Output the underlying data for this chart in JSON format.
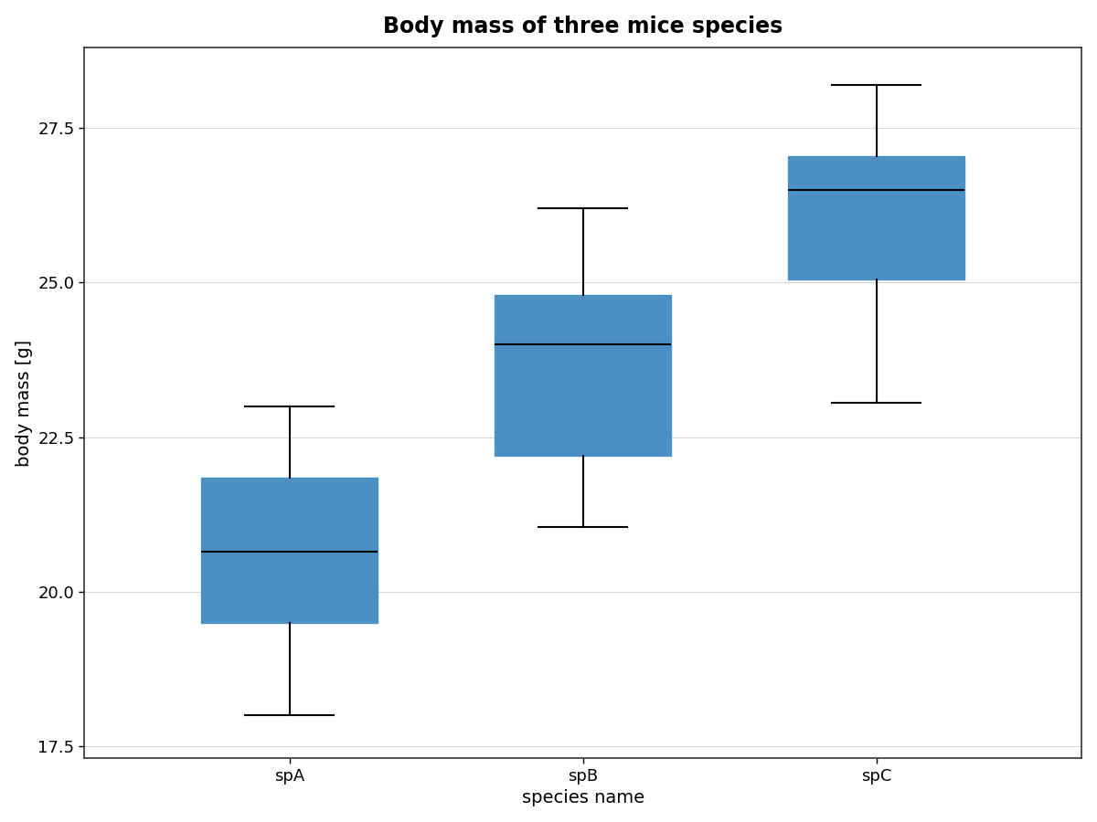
{
  "title": "Body mass of three mice species",
  "xlabel": "species name",
  "ylabel": "body mass [g]",
  "categories": [
    "spA",
    "spB",
    "spC"
  ],
  "box_stats": [
    {
      "label": "spA",
      "whislo": 18.0,
      "q1": 19.5,
      "med": 20.65,
      "q3": 21.85,
      "whishi": 23.0
    },
    {
      "label": "spB",
      "whislo": 21.05,
      "q1": 22.2,
      "med": 24.0,
      "q3": 24.8,
      "whishi": 26.2
    },
    {
      "label": "spC",
      "whislo": 23.05,
      "q1": 25.05,
      "med": 26.5,
      "q3": 27.05,
      "whishi": 28.2
    }
  ],
  "ylim": [
    17.3,
    28.8
  ],
  "yticks": [
    17.5,
    20.0,
    22.5,
    25.0,
    27.5
  ],
  "box_color": "#4a90c4",
  "median_color": "black",
  "whisker_color": "black",
  "cap_color": "black",
  "background_color": "#ffffff",
  "grid_color": "#d9d9d9",
  "spine_color": "#333333",
  "title_fontsize": 17,
  "label_fontsize": 14,
  "tick_fontsize": 13,
  "box_width": 0.6,
  "linewidth": 1.5
}
